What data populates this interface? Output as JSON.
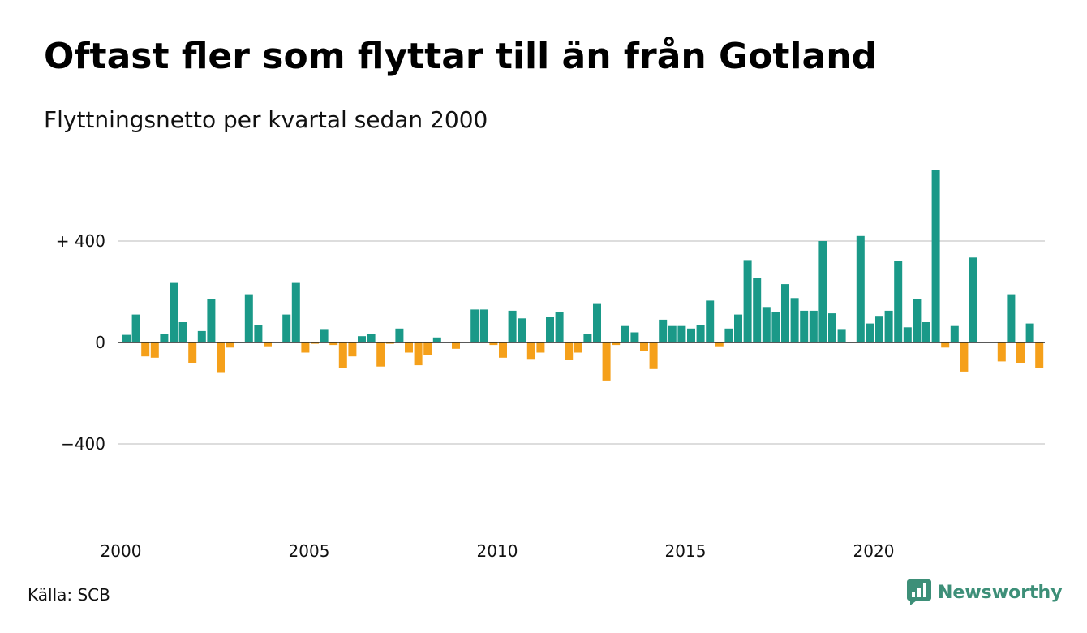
{
  "title": "Oftast fler som flyttar till än från Gotland",
  "subtitle": "Flyttningsnetto per kvartal sedan 2000",
  "source": "Källa: SCB",
  "brand": "Newsworthy",
  "colors": {
    "positive": "#1a9988",
    "negative": "#f5a01a",
    "grid": "#dddddd",
    "brand": "#3d8f78"
  },
  "chart_data": {
    "type": "bar",
    "title": "Oftast fler som flyttar till än från Gotland",
    "subtitle": "Flyttningsnetto per kvartal sedan 2000",
    "ylim": [
      -700,
      700
    ],
    "yticks": [
      {
        "value": 400,
        "label": "+ 400"
      },
      {
        "value": 0,
        "label": "0"
      },
      {
        "value": -400,
        "label": "−400"
      }
    ],
    "xticks": [
      {
        "value": 2000,
        "label": "2000"
      },
      {
        "value": 2005,
        "label": "2005"
      },
      {
        "value": 2010,
        "label": "2010"
      },
      {
        "value": 2015,
        "label": "2015"
      },
      {
        "value": 2020,
        "label": "2020"
      }
    ],
    "x_start": 2000,
    "grid": true,
    "series": [
      {
        "values": [
          30,
          110,
          -55,
          -60,
          35,
          235,
          80,
          -80,
          45,
          170,
          -120,
          -20,
          0,
          190,
          70,
          -15,
          0,
          110,
          235,
          -40,
          -5,
          50,
          -10,
          -100,
          -55,
          25,
          35,
          -95,
          -5,
          55,
          -40,
          -90,
          -50,
          20,
          0,
          -25,
          0,
          130,
          130,
          -10,
          -60,
          125,
          95,
          -65,
          -40,
          100,
          120,
          -70,
          -40,
          35,
          155,
          -150,
          -10,
          65,
          40,
          -35,
          -105,
          90,
          65,
          65,
          55,
          70,
          165,
          -15,
          55,
          110,
          325,
          255,
          140,
          120,
          230,
          175,
          125,
          125,
          400,
          115,
          50,
          0,
          420,
          75,
          105,
          125,
          320,
          60,
          170,
          80,
          680,
          -20,
          65,
          -115,
          335,
          0,
          0,
          -75,
          190,
          -80,
          75,
          -100
        ]
      }
    ]
  }
}
